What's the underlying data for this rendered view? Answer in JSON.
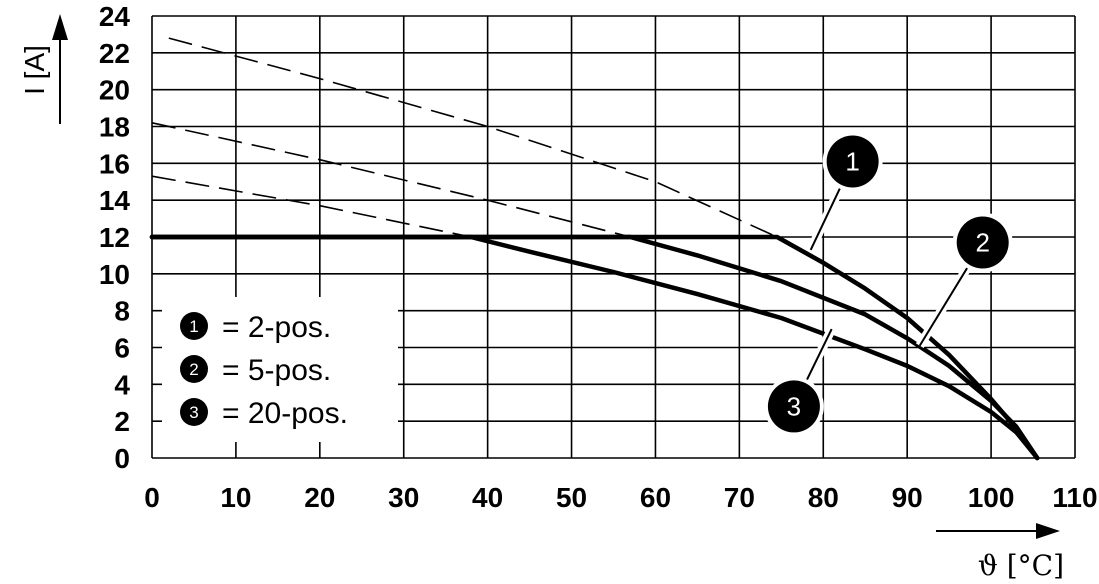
{
  "chart_data": {
    "type": "line",
    "xlabel": "ϑ [°C]",
    "ylabel": "I [A]",
    "xlim": [
      0,
      110
    ],
    "ylim": [
      0,
      24
    ],
    "x_ticks": [
      0,
      10,
      20,
      30,
      40,
      50,
      60,
      70,
      80,
      90,
      100,
      110
    ],
    "y_ticks": [
      0,
      2,
      4,
      6,
      8,
      10,
      12,
      14,
      16,
      18,
      20,
      22,
      24
    ],
    "grid": true,
    "legend_position": "bottom-left",
    "legend": [
      {
        "marker": "1",
        "text": "= 2-pos."
      },
      {
        "marker": "2",
        "text": "= 5-pos."
      },
      {
        "marker": "3",
        "text": "= 20-pos."
      }
    ],
    "series": [
      {
        "marker": "1",
        "x": [
          0,
          74.5,
          80,
          85,
          90,
          95,
          100,
          103,
          105.5
        ],
        "y": [
          12,
          12,
          10.6,
          9.2,
          7.6,
          5.6,
          3.2,
          1.6,
          0
        ]
      },
      {
        "marker": "2",
        "x": [
          0,
          57,
          65,
          75,
          85,
          90,
          95,
          100,
          103,
          105.5
        ],
        "y": [
          12,
          12,
          11.0,
          9.6,
          7.8,
          6.5,
          5.0,
          3.1,
          1.7,
          0
        ]
      },
      {
        "marker": "3",
        "x": [
          0,
          38,
          45,
          55,
          65,
          75,
          85,
          90,
          95,
          100,
          103,
          105.5
        ],
        "y": [
          12,
          12,
          11.2,
          10.1,
          8.9,
          7.6,
          5.9,
          5.0,
          3.9,
          2.5,
          1.4,
          0
        ]
      }
    ],
    "extrapolations": [
      {
        "marker": "1",
        "x": [
          2,
          20,
          40,
          60,
          74.5
        ],
        "y": [
          22.8,
          20.6,
          18.0,
          15.0,
          12
        ]
      },
      {
        "marker": "2",
        "x": [
          0,
          20,
          40,
          57
        ],
        "y": [
          18.2,
          16.2,
          14.0,
          12
        ]
      },
      {
        "marker": "3",
        "x": [
          0,
          20,
          38
        ],
        "y": [
          15.3,
          13.7,
          12
        ]
      }
    ],
    "callouts": [
      {
        "marker": "1",
        "badge": [
          83.5,
          16.1
        ],
        "point": [
          78.5,
          11.3
        ]
      },
      {
        "marker": "2",
        "badge": [
          99,
          11.7
        ],
        "point": [
          91.5,
          6.1
        ]
      },
      {
        "marker": "3",
        "badge": [
          76.5,
          2.8
        ],
        "point": [
          81,
          7.0
        ]
      }
    ]
  }
}
